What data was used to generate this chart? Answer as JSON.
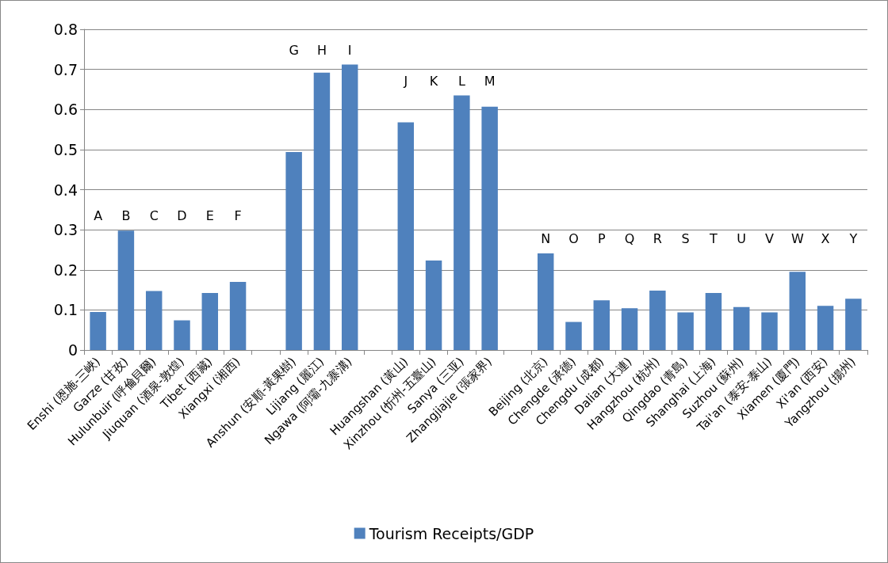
{
  "chart_data": {
    "type": "bar",
    "categories": [
      "Enshi (恩施-三峽)",
      "Garze (甘孜)",
      "Hulunbuir (呼倫貝爾)",
      "Jiuquan (酒泉-敦煌)",
      "Tibet (西藏)",
      "Xiangxi (湘西)",
      null,
      "Anshun (安順-黃果樹)",
      "Lijiang (麗江)",
      "Ngawa (阿壩-九寨溝)",
      null,
      "Huangshan (黃山)",
      "Xinzhou (忻州-五臺山)",
      "Sanya (三亚)",
      "Zhangjiajie (張家界)",
      null,
      "Beijing (北京)",
      "Chengde (承德)",
      "Chengdu (成都)",
      "Dalian (大連)",
      "Hangzhou (杭州)",
      "Qingdao (青島)",
      "Shanghai (上海)",
      "Suzhou (蘇州)",
      "Tai'an (泰安-泰山)",
      "Xiamen (廈門)",
      "Xi'an (西安)",
      "Yangzhou (揚州)"
    ],
    "series": [
      {
        "name": "Tourism Receipts/GDP",
        "color": "#4f81bd",
        "values": [
          0.095,
          0.298,
          0.147,
          0.074,
          0.142,
          0.17,
          null,
          0.494,
          0.692,
          0.712,
          null,
          0.568,
          0.223,
          0.635,
          0.607,
          null,
          0.241,
          0.07,
          0.124,
          0.104,
          0.148,
          0.094,
          0.142,
          0.107,
          0.094,
          0.195,
          0.11,
          0.128
        ]
      }
    ],
    "ylim": [
      0,
      0.8
    ],
    "yticks": [
      0,
      0.1,
      0.2,
      0.3,
      0.4,
      0.5,
      0.6,
      0.7,
      0.8
    ],
    "grid": "y",
    "legend": "bottom",
    "annotations": [
      "A",
      "B",
      "C",
      "D",
      "E",
      "F",
      "G",
      "H",
      "I",
      "J",
      "K",
      "L",
      "M",
      "N",
      "O",
      "P",
      "Q",
      "R",
      "S",
      "T",
      "U",
      "V",
      "W",
      "X",
      "Y"
    ]
  }
}
